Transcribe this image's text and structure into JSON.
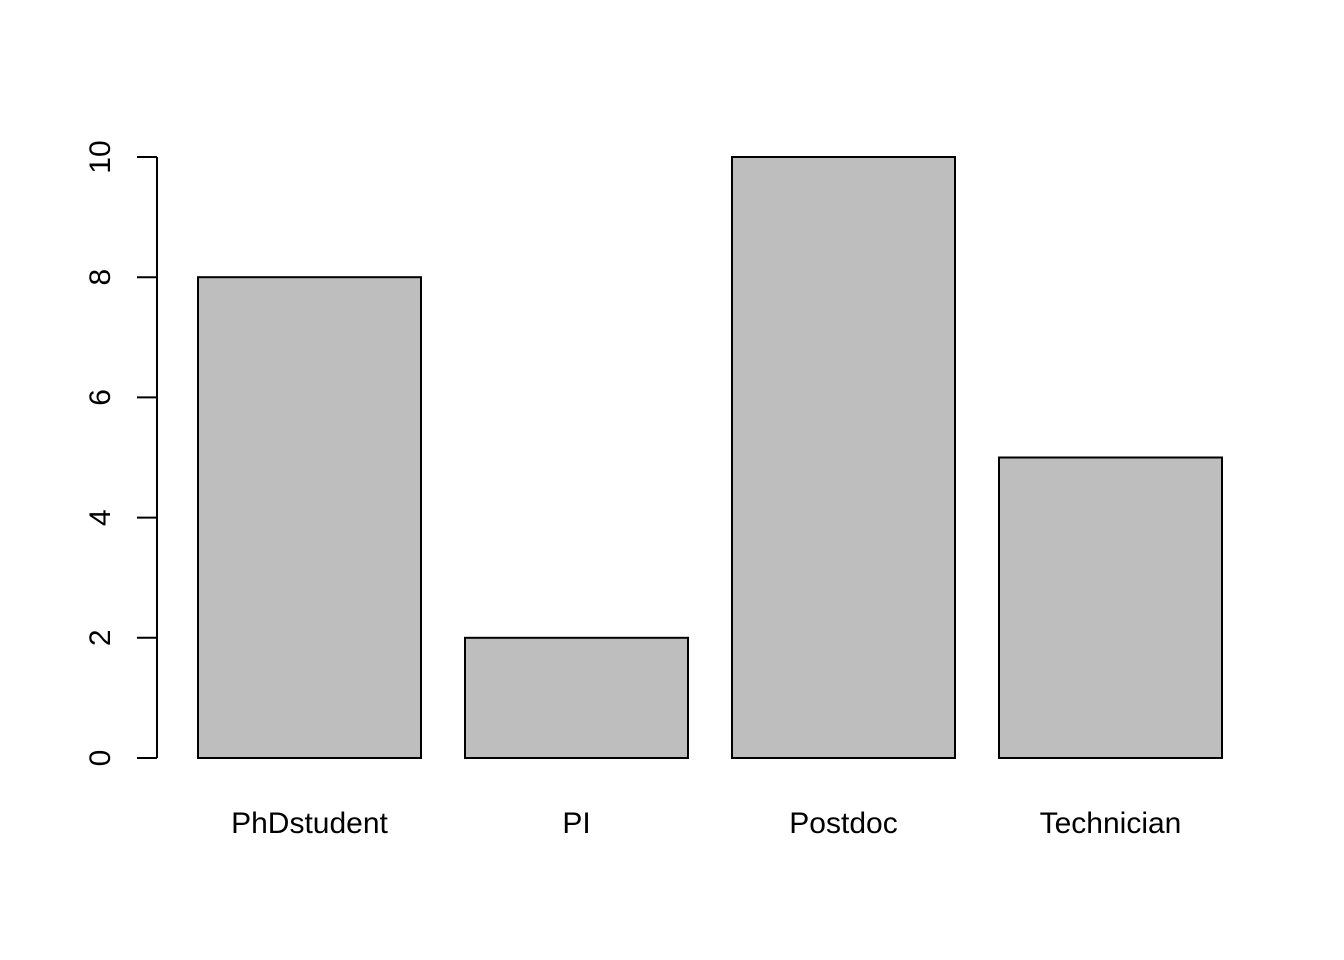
{
  "chart_data": {
    "type": "bar",
    "categories": [
      "PhDstudent",
      "PI",
      "Postdoc",
      "Technician"
    ],
    "values": [
      8,
      2,
      10,
      5
    ],
    "title": "",
    "xlabel": "",
    "ylabel": "",
    "ylim": [
      0,
      10
    ],
    "yticks": [
      "0",
      "2",
      "4",
      "6",
      "8",
      "10"
    ],
    "grid": false,
    "legend": "none",
    "colors": {
      "bar_fill": "#bebebe",
      "bar_stroke": "#000000",
      "axis": "#000000"
    }
  }
}
